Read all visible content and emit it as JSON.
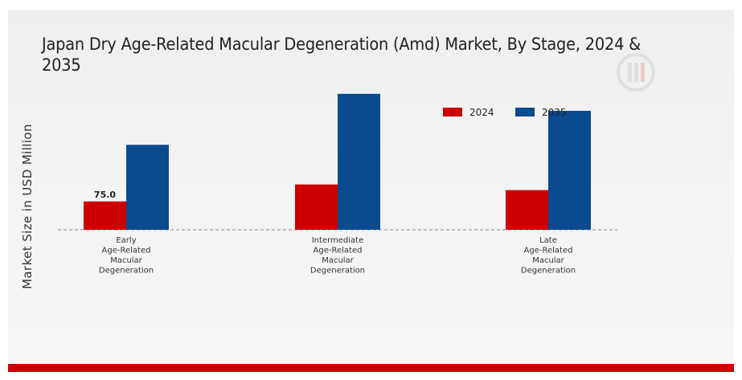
{
  "chart_data": {
    "type": "bar",
    "title": "Japan Dry Age-Related Macular Degeneration (Amd) Market, By Stage, 2024 & 2035",
    "ylabel": "Market Size in USD Million",
    "xlabel": "",
    "categories": [
      [
        "Early",
        "Age-Related",
        "Macular",
        "Degeneration"
      ],
      [
        "Intermediate",
        "Age-Related",
        "Macular",
        "Degeneration"
      ],
      [
        "Late",
        "Age-Related",
        "Macular",
        "Degeneration"
      ]
    ],
    "series": [
      {
        "name": "2024",
        "color": "#cc0000",
        "values": [
          75.0,
          120.0,
          105.0
        ]
      },
      {
        "name": "2035",
        "color": "#0a4a8f",
        "values": [
          225.0,
          360.0,
          315.0
        ]
      }
    ],
    "data_labels": [
      {
        "series": 0,
        "index": 0,
        "text": "75.0"
      }
    ],
    "ylim": [
      0,
      500
    ],
    "grid": false,
    "legend_position": "top-right"
  }
}
